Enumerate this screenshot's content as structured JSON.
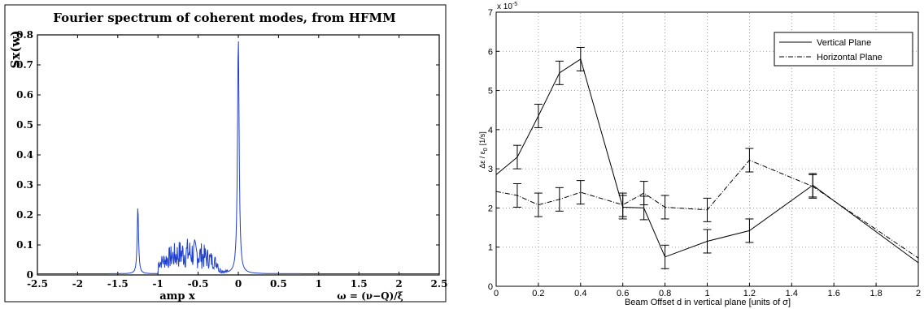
{
  "chart_data": [
    {
      "type": "line",
      "title": "Fourier spectrum of coherent modes, from HFMM",
      "ylabel": "Sx(w)",
      "xlabel": "amp x",
      "xlabel_right": "ω = (ν−Q)/ξ",
      "xlim": [
        -2.5,
        2.5
      ],
      "ylim": [
        0,
        0.8
      ],
      "xticks": [
        -2.5,
        -2,
        -1.5,
        -1,
        -0.5,
        0,
        0.5,
        1,
        1.5,
        2,
        2.5
      ],
      "xtick_labels": [
        "-2.5",
        "-2",
        "-1.5",
        "-1",
        "-0.5",
        "0",
        "0.5",
        "1",
        "1.5",
        "2",
        "2.5"
      ],
      "yticks": [
        0,
        0.1,
        0.2,
        0.3,
        0.4,
        0.5,
        0.6,
        0.7,
        0.8
      ],
      "ytick_labels": [
        "0",
        "0.1",
        "0.2",
        "0.3",
        "0.4",
        "0.5",
        "0.6",
        "0.7",
        "0.8"
      ],
      "grid": false,
      "color": "#1f3fd0",
      "peaks": [
        {
          "x": -1.25,
          "y": 0.23
        },
        {
          "x": 0.0,
          "y": 0.8
        }
      ],
      "noise_band": {
        "x_start": -1.0,
        "x_end": -0.25,
        "y_max": 0.11
      }
    },
    {
      "type": "line",
      "exponent_label": "x 10",
      "exponent_power": "-5",
      "ylabel": "Δε / ε",
      "ylabel_sub": "0",
      "ylabel_unit": "[1/s]",
      "xlabel": "Beam Offset d in vertical plane [units of σ]",
      "xlim": [
        0,
        2
      ],
      "ylim": [
        0,
        7
      ],
      "xticks": [
        0,
        0.2,
        0.4,
        0.6,
        0.8,
        1,
        1.2,
        1.4,
        1.6,
        1.8,
        2
      ],
      "xtick_labels": [
        "0",
        "0.2",
        "0.4",
        "0.6",
        "0.8",
        "1",
        "1.2",
        "1.4",
        "1.6",
        "1.8",
        "2"
      ],
      "yticks": [
        0,
        1,
        2,
        3,
        4,
        5,
        6,
        7
      ],
      "ytick_labels": [
        "0",
        "1",
        "2",
        "3",
        "4",
        "5",
        "6",
        "7"
      ],
      "grid": true,
      "legend_position": "top-right",
      "series": [
        {
          "name": "Vertical Plane",
          "style": "solid",
          "x": [
            0,
            0.1,
            0.2,
            0.3,
            0.4,
            0.6,
            0.7,
            0.8,
            1.0,
            1.2,
            1.5,
            2.0
          ],
          "y": [
            2.85,
            3.3,
            4.35,
            5.45,
            5.8,
            2.02,
            2.0,
            0.75,
            1.15,
            1.42,
            2.58,
            0.6
          ],
          "err": [
            null,
            0.3,
            0.3,
            0.3,
            0.3,
            0.3,
            0.3,
            0.3,
            0.3,
            0.3,
            0.3,
            null
          ]
        },
        {
          "name": "Horizontal Plane",
          "style": "dashdot",
          "x": [
            0,
            0.1,
            0.2,
            0.3,
            0.4,
            0.6,
            0.7,
            0.8,
            1.0,
            1.2,
            1.5,
            2.0
          ],
          "y": [
            2.42,
            2.32,
            2.08,
            2.22,
            2.4,
            2.08,
            2.38,
            2.02,
            1.95,
            3.22,
            2.55,
            0.72
          ],
          "err": [
            null,
            0.3,
            0.3,
            0.3,
            0.3,
            0.3,
            0.3,
            0.3,
            0.3,
            0.3,
            0.3,
            null
          ]
        }
      ]
    }
  ]
}
